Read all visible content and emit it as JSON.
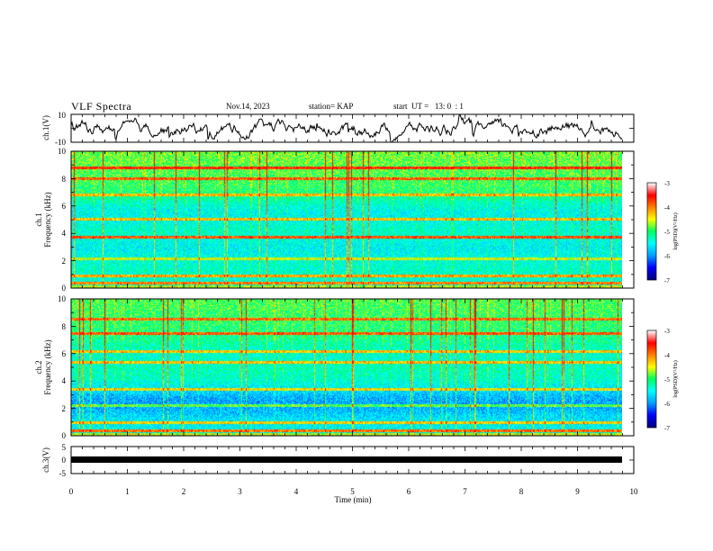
{
  "header": {
    "title": "VLF Spectra",
    "date": "Nov.14, 2023",
    "station": "station= KAP",
    "start": "start  UT =   13: 0  : 1"
  },
  "colors": {
    "waveform": "#000000",
    "colormap": [
      "#000080",
      "#0000ff",
      "#00a0ff",
      "#00ffff",
      "#00ff60",
      "#ffff00",
      "#ff8000",
      "#ff0000",
      "#ffffff"
    ]
  },
  "chart_data": [
    {
      "type": "line",
      "name": "ch1-waveform",
      "ylabel": "ch.1(V)",
      "ylim": [
        -10,
        10
      ],
      "yticks": [
        "10",
        "-10"
      ],
      "xlim": [
        0,
        10
      ]
    },
    {
      "type": "heatmap",
      "name": "ch1-spectrogram",
      "ylabel_line1": "ch.1",
      "ylabel_line2": "Frequency (kHz)",
      "ylim": [
        0,
        10
      ],
      "yticks": [
        "0",
        "2",
        "4",
        "6",
        "8",
        "10"
      ],
      "xlim": [
        0,
        10
      ],
      "colorbar": {
        "label": "log(PSD)(V²/Hz)",
        "range": [
          -7,
          -3
        ],
        "ticks": [
          "-3",
          "-4",
          "-5",
          "-6",
          "-7"
        ]
      }
    },
    {
      "type": "heatmap",
      "name": "ch2-spectrogram",
      "ylabel_line1": "ch.2",
      "ylabel_line2": "Frequency (kHz)",
      "ylim": [
        0,
        10
      ],
      "yticks": [
        "0",
        "2",
        "4",
        "6",
        "8",
        "10"
      ],
      "xlim": [
        0,
        10
      ],
      "colorbar": {
        "label": "log(PSD)(V²/Hz)",
        "range": [
          -7,
          -3
        ],
        "ticks": [
          "-3",
          "-4",
          "-5",
          "-6",
          "-7"
        ]
      }
    },
    {
      "type": "line",
      "name": "ch3-waveform",
      "ylabel": "ch.3(V)",
      "ylim": [
        -5,
        5
      ],
      "yticks": [
        "5",
        "0",
        "-5"
      ],
      "xlim": [
        0,
        10
      ],
      "xlabel": "Time (min)",
      "xticks": [
        "0",
        "1",
        "2",
        "3",
        "4",
        "5",
        "6",
        "7",
        "8",
        "9",
        "10"
      ]
    }
  ]
}
